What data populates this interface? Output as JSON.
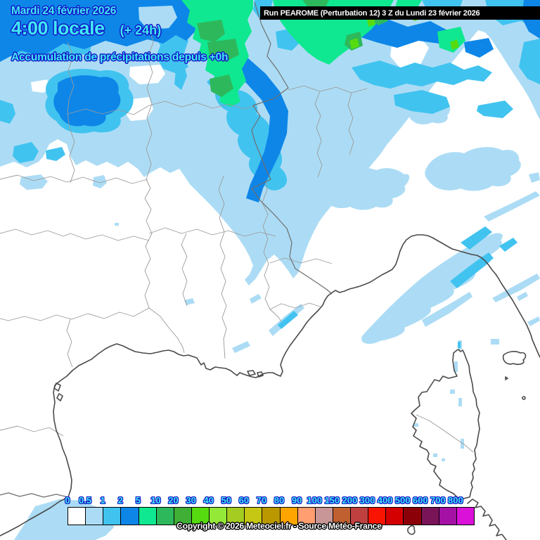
{
  "header": {
    "date": "Mardi 24 février 2026",
    "time": "4:00 locale",
    "offset": "(+ 24h)",
    "subtitle": "Accumulation de précipitations depuis +0h"
  },
  "run_bar": {
    "label": "Run PEAROME (Perturbation 12) 3 Z du Lundi 23 février 2026"
  },
  "legend": {
    "values": [
      "0",
      "0.5",
      "1",
      "2",
      "5",
      "10",
      "20",
      "30",
      "40",
      "50",
      "60",
      "70",
      "80",
      "90",
      "100",
      "150",
      "200",
      "300",
      "400",
      "500",
      "600",
      "700",
      "800"
    ],
    "colors": [
      "#FFFFFF",
      "#ACDCF5",
      "#41C3F0",
      "#0D86E8",
      "#0FE890",
      "#2EB85C",
      "#3FAF35",
      "#55DB10",
      "#93E838",
      "#A5CC20",
      "#C6C614",
      "#BC9800",
      "#FFA500",
      "#FF9E70",
      "#C89696",
      "#C06030",
      "#C04040",
      "#F81400",
      "#D40000",
      "#8B0008",
      "#7A1458",
      "#A511A5",
      "#D911D9"
    ]
  },
  "map": {
    "precip_colors": {
      "trace": "#ACDCF5",
      "light": "#41C3F0",
      "moderate": "#0D86E8",
      "heavy": "#0FE890",
      "very_heavy": "#2EB85C",
      "intense": "#55DB10"
    },
    "line_colors": {
      "department_border": "#9A9A9A",
      "national_border": "#6E6E6E",
      "coastline": "#4A4A4A"
    }
  },
  "footer": {
    "copyright": "Copyright © 2026 Meteociel.fr - Source Météo-France"
  }
}
